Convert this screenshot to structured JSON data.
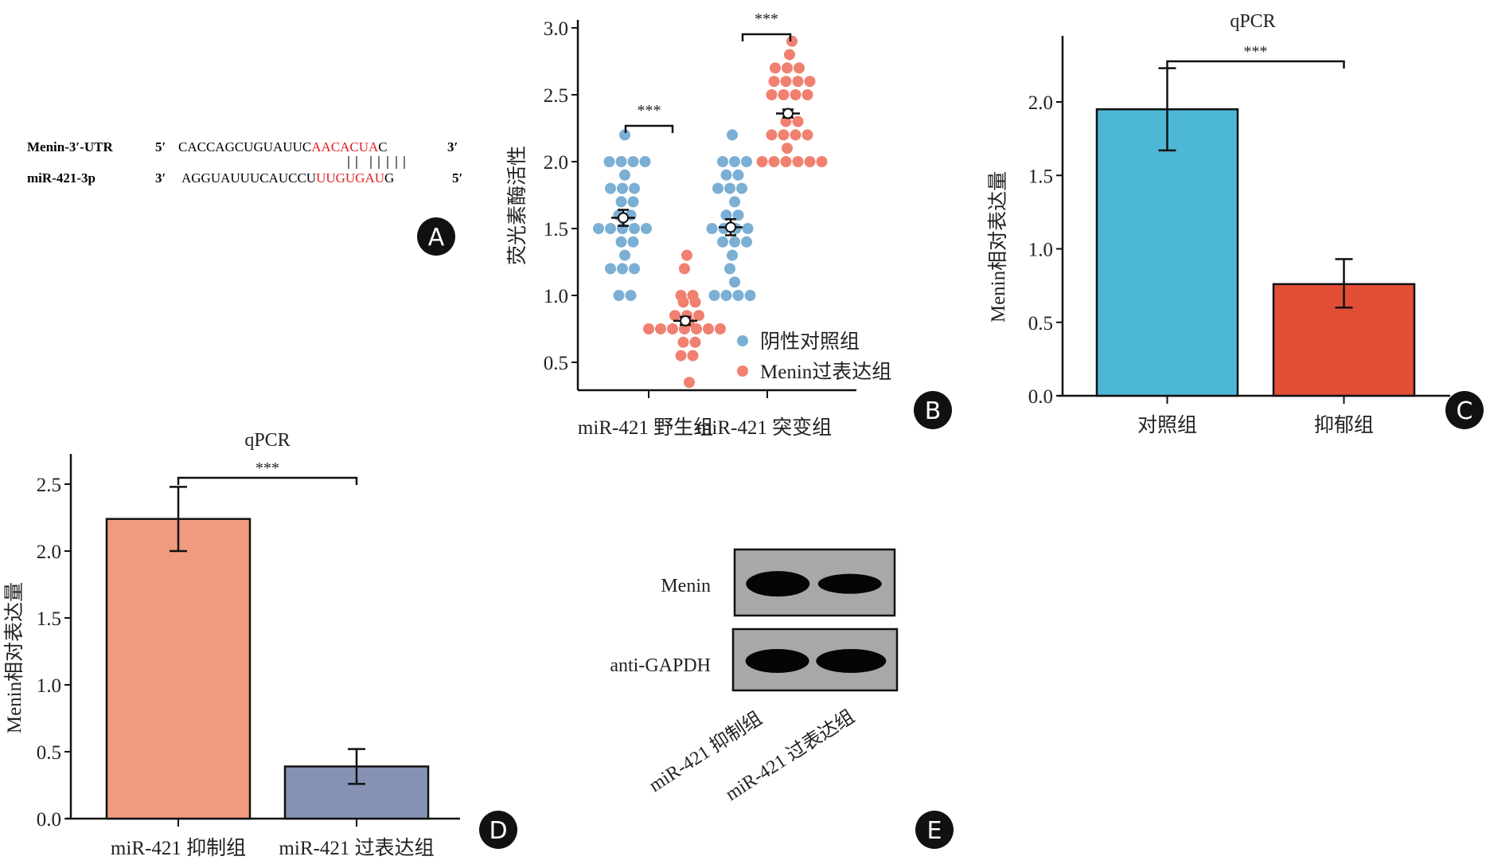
{
  "panel_labels": [
    "A",
    "B",
    "C",
    "D",
    "E"
  ],
  "panel_a": {
    "rows": [
      {
        "name": "Menin-3′-UTR",
        "end_left": "5′",
        "prefix": "CACCAGCUGUAUUC",
        "match": "AACACUA",
        "suffix": "C",
        "end_right": "3′"
      },
      {
        "name": "miR-421-3p",
        "end_left": "3′",
        "prefix": "AGGUAUUUCAUCCU",
        "match": "UUGUGAU",
        "suffix": "G",
        "end_right": "5′"
      }
    ],
    "pair_bars": 7,
    "match_color": "#e02020"
  },
  "chart_data": [
    {
      "id": "B",
      "type": "scatter",
      "title": "",
      "ylabel": "荧光素酶活性",
      "xlabel": "",
      "ylim": [
        0.3,
        3.1
      ],
      "yticks": [
        0.5,
        1.0,
        1.5,
        2.0,
        2.5,
        3.0
      ],
      "ytick_labels": [
        "0.5",
        "1.0",
        "1.5",
        "2.0",
        "2.5",
        "3.0"
      ],
      "categories": [
        "miR-421 野生组",
        "miR-421 突变组"
      ],
      "legend": {
        "position": "bottom-right",
        "entries": [
          "阴性对照组",
          "Menin过表达组"
        ]
      },
      "series": [
        {
          "name": "阴性对照组",
          "color": "#7bafd4",
          "groups": [
            {
              "category": "miR-421 野生组",
              "mean": 1.58,
              "sem": 0.06,
              "values": [
                2.2,
                2.0,
                2.0,
                2.0,
                2.0,
                1.9,
                1.8,
                1.8,
                1.8,
                1.7,
                1.7,
                1.6,
                1.6,
                1.5,
                1.5,
                1.5,
                1.5,
                1.5,
                1.4,
                1.4,
                1.3,
                1.2,
                1.2,
                1.2,
                1.0,
                1.0
              ]
            },
            {
              "category": "miR-421 突变组",
              "mean": 1.51,
              "sem": 0.06,
              "values": [
                2.2,
                2.0,
                2.0,
                2.0,
                1.9,
                1.9,
                1.8,
                1.8,
                1.8,
                1.7,
                1.6,
                1.6,
                1.5,
                1.5,
                1.5,
                1.5,
                1.4,
                1.4,
                1.4,
                1.3,
                1.2,
                1.1,
                1.0,
                1.0,
                1.0,
                1.0
              ]
            }
          ]
        },
        {
          "name": "Menin过表达组",
          "color": "#f08070",
          "groups": [
            {
              "category": "miR-421 野生组",
              "mean": 0.81,
              "sem": 0.03,
              "values": [
                1.3,
                1.2,
                1.0,
                1.0,
                0.95,
                0.95,
                0.85,
                0.85,
                0.85,
                0.8,
                0.75,
                0.75,
                0.75,
                0.75,
                0.75,
                0.75,
                0.75,
                0.65,
                0.65,
                0.55,
                0.55,
                0.35
              ]
            },
            {
              "category": "miR-421 突变组",
              "mean": 2.36,
              "sem": 0.03,
              "values": [
                2.9,
                2.8,
                2.7,
                2.7,
                2.7,
                2.6,
                2.6,
                2.6,
                2.6,
                2.5,
                2.5,
                2.5,
                2.5,
                2.3,
                2.3,
                2.2,
                2.2,
                2.2,
                2.2,
                2.1,
                2.0,
                2.0,
                2.0,
                2.0,
                2.0,
                2.0
              ]
            }
          ]
        }
      ],
      "annotations": [
        "***",
        "***"
      ]
    },
    {
      "id": "C",
      "type": "bar",
      "title": "qPCR",
      "ylabel": "Menin相对表达量",
      "xlabel": "",
      "ylim": [
        0,
        2.4
      ],
      "yticks": [
        0.0,
        0.5,
        1.0,
        1.5,
        2.0
      ],
      "ytick_labels": [
        "0.0",
        "0.5",
        "1.0",
        "1.5",
        "2.0"
      ],
      "categories": [
        "对照组",
        "抑郁组"
      ],
      "values": [
        1.95,
        0.76
      ],
      "error_low": [
        1.67,
        0.6
      ],
      "error_high": [
        2.23,
        0.93
      ],
      "colors": [
        "#4db8d6",
        "#e34e37"
      ],
      "annotations": [
        "***"
      ]
    },
    {
      "id": "D",
      "type": "bar",
      "title": "qPCR",
      "ylabel": "Menin相对表达量",
      "xlabel": "",
      "ylim": [
        0,
        2.7
      ],
      "yticks": [
        0.0,
        0.5,
        1.0,
        1.5,
        2.0,
        2.5
      ],
      "ytick_labels": [
        "0.0",
        "0.5",
        "1.0",
        "1.5",
        "2.0",
        "2.5"
      ],
      "categories": [
        "miR-421 抑制组",
        "miR-421 过表达组"
      ],
      "values": [
        2.24,
        0.39
      ],
      "error_low": [
        2.0,
        0.26
      ],
      "error_high": [
        2.48,
        0.52
      ],
      "colors": [
        "#f09b80",
        "#8592b4"
      ],
      "annotations": [
        "***"
      ]
    }
  ],
  "panel_e": {
    "blots": [
      {
        "label": "Menin",
        "band_intensity": [
          1.0,
          0.65
        ]
      },
      {
        "label": "anti-GAPDH",
        "band_intensity": [
          0.9,
          0.9
        ]
      }
    ],
    "lanes": [
      "miR-421 抑制组",
      "miR-421 过表达组"
    ]
  }
}
